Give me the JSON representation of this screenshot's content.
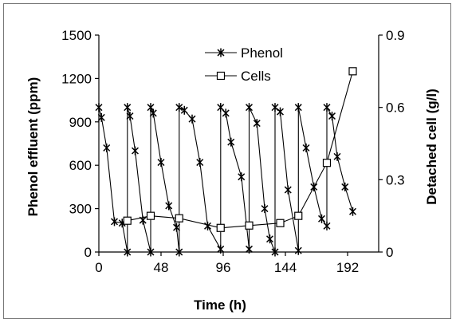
{
  "chart_data": {
    "type": "line",
    "x_axis": {
      "label": "Time (h)",
      "range": [
        0,
        216
      ],
      "ticks": [
        0,
        48,
        96,
        144,
        192
      ]
    },
    "y_left_axis": {
      "label": "Phenol effluent (ppm)",
      "range": [
        0,
        1500
      ],
      "ticks": [
        0,
        300,
        600,
        900,
        1200,
        1500
      ]
    },
    "y_right_axis": {
      "label": "Detached cell (g/l)",
      "range": [
        0,
        0.9
      ],
      "ticks": [
        0,
        0.3,
        0.6,
        0.9
      ],
      "tick_labels": [
        "0",
        "0.3",
        "0.6",
        "0.9"
      ]
    },
    "legend": {
      "position": "top-center"
    },
    "series": [
      {
        "name": "Phenol",
        "axis": "left",
        "marker": "asterisk",
        "points": [
          [
            0,
            1000
          ],
          [
            2,
            930
          ],
          [
            6,
            720
          ],
          [
            12,
            210
          ],
          [
            18,
            200
          ],
          [
            22,
            0
          ],
          [
            22,
            1000
          ],
          [
            24,
            940
          ],
          [
            28,
            700
          ],
          [
            34,
            220
          ],
          [
            40,
            0
          ],
          [
            40,
            1000
          ],
          [
            42,
            960
          ],
          [
            48,
            620
          ],
          [
            54,
            320
          ],
          [
            60,
            170
          ],
          [
            62,
            0
          ],
          [
            62,
            1000
          ],
          [
            66,
            980
          ],
          [
            72,
            920
          ],
          [
            78,
            620
          ],
          [
            84,
            180
          ],
          [
            94,
            20
          ],
          [
            94,
            1000
          ],
          [
            98,
            960
          ],
          [
            102,
            760
          ],
          [
            110,
            520
          ],
          [
            116,
            20
          ],
          [
            116,
            1000
          ],
          [
            122,
            890
          ],
          [
            128,
            300
          ],
          [
            132,
            90
          ],
          [
            136,
            0
          ],
          [
            136,
            1000
          ],
          [
            140,
            970
          ],
          [
            146,
            430
          ],
          [
            154,
            10
          ],
          [
            154,
            1000
          ],
          [
            160,
            720
          ],
          [
            166,
            450
          ],
          [
            172,
            230
          ],
          [
            176,
            180
          ],
          [
            176,
            1000
          ],
          [
            180,
            940
          ],
          [
            184,
            660
          ],
          [
            190,
            450
          ],
          [
            196,
            280
          ]
        ]
      },
      {
        "name": "Cells",
        "axis": "right",
        "marker": "open-square",
        "points": [
          [
            22,
            0.13
          ],
          [
            40,
            0.15
          ],
          [
            62,
            0.14
          ],
          [
            94,
            0.1
          ],
          [
            116,
            0.11
          ],
          [
            140,
            0.12
          ],
          [
            154,
            0.15
          ],
          [
            176,
            0.37
          ],
          [
            196,
            0.75
          ]
        ]
      }
    ]
  }
}
